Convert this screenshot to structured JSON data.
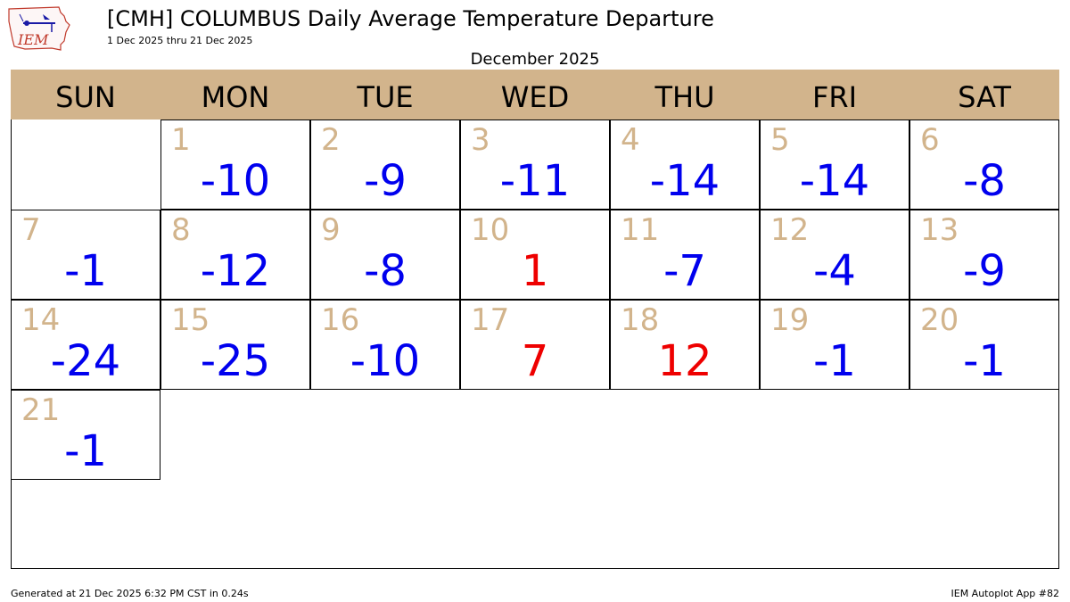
{
  "logo": {
    "text": "IEM"
  },
  "header": {
    "title": "[CMH] COLUMBUS Daily Average Temperature Departure",
    "subtitle": "1 Dec 2025 thru 21 Dec 2025"
  },
  "chart_data": {
    "type": "table",
    "title": "[CMH] COLUMBUS Daily Average Temperature Departure",
    "subtitle": "1 Dec 2025 thru 21 Dec 2025",
    "month_label": "December 2025",
    "weekdays": [
      "SUN",
      "MON",
      "TUE",
      "WED",
      "THU",
      "FRI",
      "SAT"
    ],
    "first_weekday_index": 1,
    "days": [
      {
        "day": "1",
        "value": "-10"
      },
      {
        "day": "2",
        "value": "-9"
      },
      {
        "day": "3",
        "value": "-11"
      },
      {
        "day": "4",
        "value": "-14"
      },
      {
        "day": "5",
        "value": "-14"
      },
      {
        "day": "6",
        "value": "-8"
      },
      {
        "day": "7",
        "value": "-1"
      },
      {
        "day": "8",
        "value": "-12"
      },
      {
        "day": "9",
        "value": "-8"
      },
      {
        "day": "10",
        "value": "1"
      },
      {
        "day": "11",
        "value": "-7"
      },
      {
        "day": "12",
        "value": "-4"
      },
      {
        "day": "13",
        "value": "-9"
      },
      {
        "day": "14",
        "value": "-24"
      },
      {
        "day": "15",
        "value": "-25"
      },
      {
        "day": "16",
        "value": "-10"
      },
      {
        "day": "17",
        "value": "7"
      },
      {
        "day": "18",
        "value": "12"
      },
      {
        "day": "19",
        "value": "-1"
      },
      {
        "day": "20",
        "value": "-1"
      },
      {
        "day": "21",
        "value": "-1"
      }
    ],
    "colors": {
      "header_bg": "#d2b48c",
      "day_number": "#d2b48c",
      "negative": "#0000ee",
      "positive": "#ee0000"
    }
  },
  "footer": {
    "generated": "Generated at 21 Dec 2025 6:32 PM CST in 0.24s",
    "app": "IEM Autoplot App #82"
  }
}
